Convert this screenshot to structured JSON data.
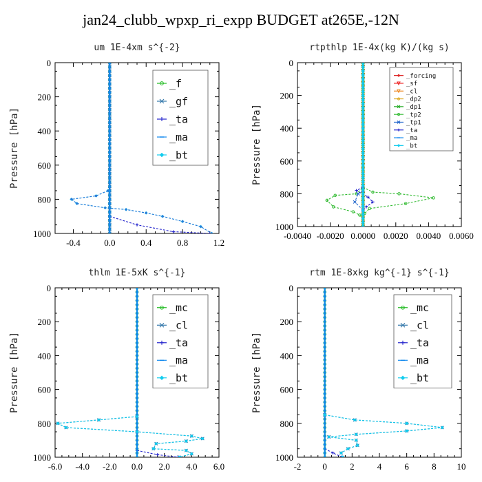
{
  "page": {
    "title": "jan24_clubb_wpxp_ri_expp  BUDGET at265E,-12N"
  },
  "chart_data": [
    {
      "type": "line",
      "title": "um   1E-4xm s^{-2}",
      "ylabel": "Pressure [hPa]",
      "xlim": [
        -0.6,
        1.2
      ],
      "ylim": [
        1000,
        0
      ],
      "x_ticks": [
        "-0.4",
        "0.0",
        "0.4",
        "0.8",
        "1.2"
      ],
      "y_ticks": [
        "0",
        "200",
        "400",
        "600",
        "800",
        "1000"
      ],
      "legend_position": "top-right",
      "series": [
        {
          "name": "_f",
          "color": "#22bb22",
          "marker": "circle",
          "points": [
            [
              0,
              0
            ],
            [
              0,
              250
            ],
            [
              0,
              500
            ],
            [
              0,
              750
            ],
            [
              0,
              1000
            ]
          ]
        },
        {
          "name": "_gf",
          "color": "#3377aa",
          "marker": "x",
          "points": [
            [
              0,
              0
            ],
            [
              0,
              500
            ],
            [
              0,
              1000
            ]
          ]
        },
        {
          "name": "_ta",
          "color": "#2222cc",
          "marker": "plus",
          "points": [
            [
              0.0,
              900
            ],
            [
              0.3,
              950
            ],
            [
              0.7,
              990
            ],
            [
              1.1,
              1000
            ]
          ]
        },
        {
          "name": "_ma",
          "color": "#1188ee",
          "marker": "dash",
          "points": [
            [
              0,
              0
            ],
            [
              0,
              1000
            ]
          ]
        },
        {
          "name": "_bt",
          "color": "#11ccee",
          "marker": "diamond",
          "points": [
            [
              -0.02,
              750
            ],
            [
              -0.15,
              780
            ],
            [
              -0.42,
              800
            ],
            [
              -0.36,
              825
            ],
            [
              -0.05,
              850
            ],
            [
              0.18,
              860
            ],
            [
              0.4,
              880
            ],
            [
              0.58,
              900
            ],
            [
              0.8,
              930
            ],
            [
              1.0,
              960
            ],
            [
              1.12,
              1000
            ]
          ]
        },
        {
          "name": "",
          "color": "#2c78d8",
          "marker": "dot",
          "points": [
            [
              -0.02,
              750
            ],
            [
              -0.15,
              780
            ],
            [
              -0.42,
              800
            ],
            [
              -0.36,
              825
            ],
            [
              -0.05,
              850
            ],
            [
              0.18,
              860
            ],
            [
              0.4,
              880
            ],
            [
              0.58,
              900
            ],
            [
              0.8,
              930
            ],
            [
              1.0,
              960
            ],
            [
              1.12,
              1000
            ]
          ]
        }
      ]
    },
    {
      "type": "line",
      "title": "rtpthlp   1E-4x(kg K)/(kg s)",
      "ylabel": "Pressure [hPa]",
      "xlim": [
        -0.004,
        0.006
      ],
      "ylim": [
        1000,
        0
      ],
      "x_ticks": [
        "-0.0040",
        "-0.0020",
        "0.0000",
        "0.0020",
        "0.0040",
        "0.0060"
      ],
      "y_ticks": [
        "0",
        "200",
        "400",
        "600",
        "800",
        "1000"
      ],
      "legend_position": "top-right",
      "series": [
        {
          "name": "_forcing",
          "color": "#dd2222",
          "marker": "diamond",
          "points": [
            [
              0,
              0
            ],
            [
              0,
              1000
            ]
          ]
        },
        {
          "name": "_sf",
          "color": "#ee2222",
          "marker": "triangle",
          "points": [
            [
              0,
              0
            ],
            [
              0,
              1000
            ]
          ]
        },
        {
          "name": "_cl",
          "color": "#ee8822",
          "marker": "triangle",
          "points": [
            [
              0,
              0
            ],
            [
              0,
              1000
            ]
          ]
        },
        {
          "name": "_dp2",
          "color": "#ddaa22",
          "marker": "circle",
          "points": [
            [
              0,
              0
            ],
            [
              0,
              1000
            ]
          ]
        },
        {
          "name": "_dp1",
          "color": "#22aa22",
          "marker": "x",
          "points": [
            [
              0,
              0
            ],
            [
              0,
              1000
            ]
          ]
        },
        {
          "name": "_tp2",
          "color": "#33bb33",
          "marker": "circle",
          "points": [
            [
              0,
              760
            ],
            [
              0.0006,
              790
            ],
            [
              0.0022,
              800
            ],
            [
              0.0043,
              825
            ],
            [
              0.0026,
              860
            ],
            [
              0.0004,
              890
            ],
            [
              0.0001,
              920
            ],
            [
              0,
              950
            ],
            [
              -0.0002,
              930
            ],
            [
              -0.0006,
              910
            ],
            [
              -0.0018,
              880
            ],
            [
              -0.0022,
              840
            ],
            [
              -0.0017,
              810
            ],
            [
              -0.0004,
              800
            ],
            [
              0,
              760
            ]
          ]
        },
        {
          "name": "_tp1",
          "color": "#2266cc",
          "marker": "x",
          "points": [
            [
              0,
              780
            ],
            [
              -0.0003,
              800
            ],
            [
              -0.0005,
              850
            ],
            [
              0,
              900
            ]
          ]
        },
        {
          "name": "_ta",
          "color": "#2222cc",
          "marker": "plus",
          "points": [
            [
              0,
              760
            ],
            [
              -0.0004,
              780
            ],
            [
              0.0003,
              820
            ],
            [
              0.0006,
              850
            ],
            [
              0.0002,
              880
            ],
            [
              0,
              900
            ]
          ]
        },
        {
          "name": "_ma",
          "color": "#1188ee",
          "marker": "dash",
          "points": [
            [
              0,
              0
            ],
            [
              0,
              1000
            ]
          ]
        },
        {
          "name": "_bt",
          "color": "#11ccee",
          "marker": "diamond",
          "points": [
            [
              0,
              0
            ],
            [
              0,
              1000
            ]
          ]
        }
      ]
    },
    {
      "type": "line",
      "title": "thlm   1E-5xK s^{-1}",
      "ylabel": "Pressure [hPa]",
      "xlim": [
        -6.0,
        6.0
      ],
      "ylim": [
        1000,
        0
      ],
      "x_ticks": [
        "-6.0",
        "-4.0",
        "-2.0",
        "0.0",
        "2.0",
        "4.0",
        "6.0"
      ],
      "y_ticks": [
        "0",
        "200",
        "400",
        "600",
        "800",
        "1000"
      ],
      "legend_position": "top-right",
      "series": [
        {
          "name": "_mc",
          "color": "#22bb22",
          "marker": "circle",
          "points": [
            [
              0,
              0
            ],
            [
              0,
              250
            ],
            [
              0,
              500
            ],
            [
              0,
              750
            ],
            [
              0,
              1000
            ]
          ]
        },
        {
          "name": "_cl",
          "color": "#3377aa",
          "marker": "x",
          "points": [
            [
              0,
              760
            ],
            [
              -2.8,
              780
            ],
            [
              -5.8,
              800
            ],
            [
              -5.2,
              825
            ],
            [
              0,
              850
            ],
            [
              4.0,
              875
            ],
            [
              4.8,
              890
            ],
            [
              3.6,
              905
            ],
            [
              1.4,
              920
            ],
            [
              1.2,
              950
            ],
            [
              3.6,
              960
            ],
            [
              4.0,
              980
            ],
            [
              3.1,
              1000
            ]
          ]
        },
        {
          "name": "_ta",
          "color": "#2222cc",
          "marker": "plus",
          "points": [
            [
              0,
              960
            ],
            [
              1.5,
              985
            ],
            [
              3.0,
              1000
            ]
          ]
        },
        {
          "name": "_ma",
          "color": "#1188ee",
          "marker": "dash",
          "points": [
            [
              0,
              0
            ],
            [
              0,
              1000
            ]
          ]
        },
        {
          "name": "_bt",
          "color": "#11ccee",
          "marker": "diamond",
          "points": [
            [
              0,
              760
            ],
            [
              -2.8,
              780
            ],
            [
              -5.8,
              800
            ],
            [
              -5.2,
              825
            ],
            [
              0,
              850
            ],
            [
              4.0,
              875
            ],
            [
              4.8,
              890
            ],
            [
              3.6,
              905
            ],
            [
              1.4,
              920
            ],
            [
              1.2,
              950
            ],
            [
              3.6,
              960
            ],
            [
              4.0,
              980
            ],
            [
              3.1,
              1000
            ]
          ]
        }
      ]
    },
    {
      "type": "line",
      "title": "rtm   1E-8xkg kg^{-1} s^{-1}",
      "ylabel": "Pressure [hPa]",
      "xlim": [
        -2,
        10
      ],
      "ylim": [
        1000,
        0
      ],
      "x_ticks": [
        "-2",
        "0",
        "2",
        "4",
        "6",
        "8",
        "10"
      ],
      "y_ticks": [
        "0",
        "200",
        "400",
        "600",
        "800",
        "1000"
      ],
      "legend_position": "top-right",
      "series": [
        {
          "name": "_mc",
          "color": "#22bb22",
          "marker": "circle",
          "points": [
            [
              0,
              0
            ],
            [
              0,
              250
            ],
            [
              0,
              500
            ],
            [
              0,
              750
            ],
            [
              0,
              1000
            ]
          ]
        },
        {
          "name": "_cl",
          "color": "#3377aa",
          "marker": "x",
          "points": [
            [
              0,
              750
            ],
            [
              2.2,
              780
            ],
            [
              6.0,
              800
            ],
            [
              8.6,
              825
            ],
            [
              6.0,
              845
            ],
            [
              2.3,
              865
            ],
            [
              0.3,
              880
            ],
            [
              2.3,
              900
            ],
            [
              2.4,
              930
            ],
            [
              1.7,
              950
            ],
            [
              1.2,
              975
            ],
            [
              1.3,
              1000
            ]
          ]
        },
        {
          "name": "_ta",
          "color": "#2222cc",
          "marker": "plus",
          "points": [
            [
              0,
              950
            ],
            [
              0.6,
              975
            ],
            [
              1.3,
              1000
            ]
          ]
        },
        {
          "name": "_ma",
          "color": "#1188ee",
          "marker": "dash",
          "points": [
            [
              0,
              0
            ],
            [
              0,
              1000
            ]
          ]
        },
        {
          "name": "_bt",
          "color": "#11ccee",
          "marker": "diamond",
          "points": [
            [
              0,
              750
            ],
            [
              2.2,
              780
            ],
            [
              6.0,
              800
            ],
            [
              8.6,
              825
            ],
            [
              6.0,
              845
            ],
            [
              2.3,
              865
            ],
            [
              0.3,
              880
            ],
            [
              2.3,
              900
            ],
            [
              2.4,
              930
            ],
            [
              1.7,
              950
            ],
            [
              1.2,
              975
            ],
            [
              1.3,
              1000
            ]
          ]
        }
      ]
    }
  ]
}
